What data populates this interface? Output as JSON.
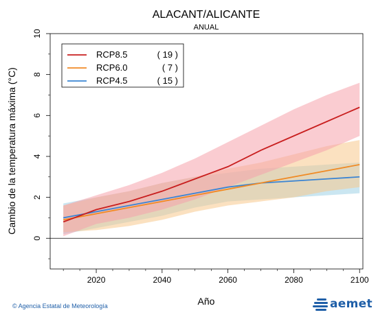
{
  "chart_data": {
    "type": "line",
    "title": "ALACANT/ALICANTE",
    "subtitle": "ANUAL",
    "xlabel": "Año",
    "ylabel": "Cambio de la temperatura máxima (°C)",
    "xlim": [
      2006,
      2101
    ],
    "ylim": [
      -1.5,
      10
    ],
    "xticks": [
      2020,
      2040,
      2060,
      2080,
      2100
    ],
    "yticks": [
      0,
      2,
      4,
      6,
      8,
      10
    ],
    "reference_line": 0,
    "grid": false,
    "legend_placement": "top-left",
    "series": [
      {
        "name": "RCP8.5",
        "count_label": "( 19 )",
        "color": "#c81e1e",
        "band_color": "#f6a3ac",
        "x": [
          2010,
          2020,
          2030,
          2040,
          2050,
          2060,
          2070,
          2080,
          2090,
          2100
        ],
        "values": [
          0.8,
          1.4,
          1.8,
          2.3,
          2.9,
          3.5,
          4.3,
          5.0,
          5.7,
          6.4
        ],
        "lower": [
          0.1,
          0.7,
          1.0,
          1.4,
          1.9,
          2.5,
          3.1,
          3.7,
          4.3,
          5.0
        ],
        "upper": [
          1.6,
          2.1,
          2.6,
          3.2,
          3.9,
          4.7,
          5.5,
          6.3,
          7.0,
          7.6
        ]
      },
      {
        "name": "RCP6.0",
        "count_label": "( 7 )",
        "color": "#f08a24",
        "band_color": "#f8c98c",
        "x": [
          2010,
          2020,
          2030,
          2040,
          2050,
          2060,
          2070,
          2080,
          2090,
          2100
        ],
        "values": [
          0.9,
          1.2,
          1.5,
          1.8,
          2.1,
          2.4,
          2.7,
          3.0,
          3.3,
          3.6
        ],
        "lower": [
          0.3,
          0.4,
          0.6,
          0.9,
          1.3,
          1.6,
          1.8,
          2.0,
          2.3,
          2.5
        ],
        "upper": [
          1.6,
          2.0,
          2.3,
          2.7,
          3.0,
          3.4,
          3.7,
          4.1,
          4.5,
          4.8
        ]
      },
      {
        "name": "RCP4.5",
        "count_label": "( 15 )",
        "color": "#3a84d3",
        "band_color": "#9fd2e6",
        "x": [
          2010,
          2020,
          2030,
          2040,
          2050,
          2060,
          2070,
          2080,
          2090,
          2100
        ],
        "values": [
          1.0,
          1.3,
          1.6,
          1.9,
          2.2,
          2.5,
          2.7,
          2.8,
          2.9,
          3.0
        ],
        "lower": [
          0.2,
          0.5,
          0.8,
          1.1,
          1.5,
          1.8,
          1.9,
          2.0,
          2.1,
          2.2
        ],
        "upper": [
          1.7,
          2.0,
          2.3,
          2.7,
          3.0,
          3.2,
          3.4,
          3.5,
          3.6,
          3.7
        ]
      }
    ]
  },
  "footer": {
    "credit": "© Agencia Estatal de Meteorología",
    "logo_text": "aemet"
  }
}
